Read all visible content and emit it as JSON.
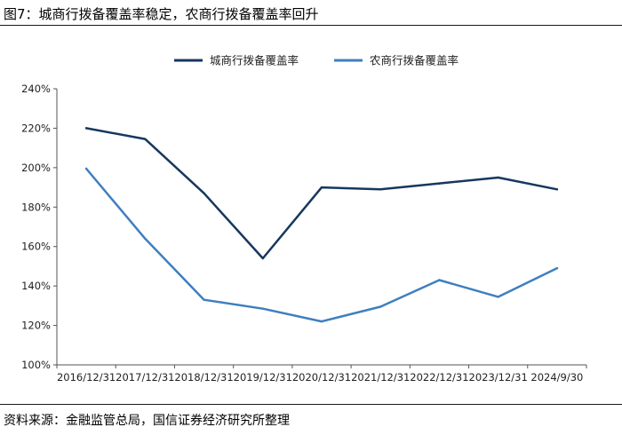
{
  "figure": {
    "title": "图7：城商行拨备覆盖率稳定，农商行拨备覆盖率回升",
    "source": "资料来源：金融监管总局，国信证券经济研究所整理"
  },
  "chart_data": {
    "type": "line",
    "title": "",
    "xlabel": "",
    "ylabel": "",
    "categories": [
      "2016/12/31",
      "2017/12/31",
      "2018/12/31",
      "2019/12/31",
      "2020/12/31",
      "2021/12/31",
      "2022/12/31",
      "2023/12/31",
      "2024/9/30"
    ],
    "ylim": [
      100,
      240
    ],
    "yticks": [
      100,
      120,
      140,
      160,
      180,
      200,
      220,
      240
    ],
    "ytick_labels": [
      "100%",
      "120%",
      "140%",
      "160%",
      "180%",
      "200%",
      "220%",
      "240%"
    ],
    "grid": false,
    "legend_position": "top-center",
    "series": [
      {
        "name": "城商行拨备覆盖率",
        "color": "#17375e",
        "values": [
          220,
          214.5,
          187,
          154,
          190,
          189,
          192,
          195,
          189
        ]
      },
      {
        "name": "农商行拨备覆盖率",
        "color": "#3f7fbf",
        "values": [
          199.5,
          164,
          133,
          128.5,
          122,
          129.5,
          143,
          134.5,
          149
        ]
      }
    ]
  }
}
